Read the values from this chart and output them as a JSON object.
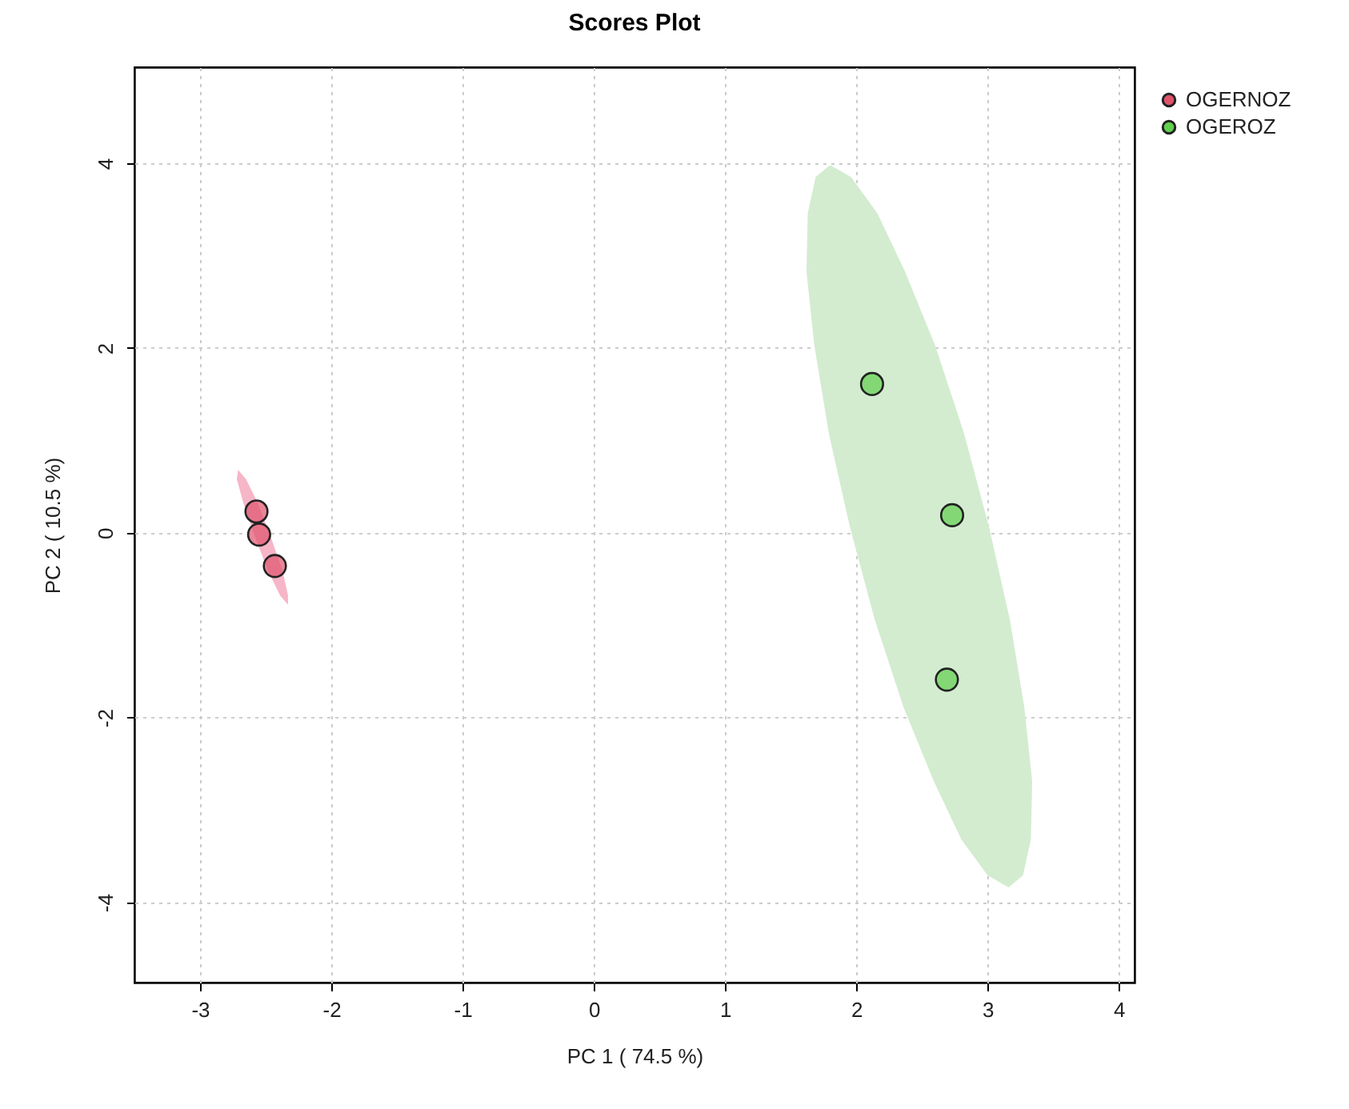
{
  "chart_data": {
    "type": "scatter",
    "title": "Scores Plot",
    "xlabel": "PC 1 ( 74.5 %)",
    "ylabel": "PC 2 ( 10.5 %)",
    "xlim": [
      -3.5,
      4.12
    ],
    "ylim": [
      -4.87,
      5.04
    ],
    "xticks": [
      -3,
      -2,
      -1,
      0,
      1,
      2,
      3,
      4
    ],
    "yticks": [
      -4,
      -2,
      0,
      2,
      4
    ],
    "grid": true,
    "legend": "top right",
    "series": [
      {
        "type": "area",
        "color": "#f6b6c8",
        "x": [
          -2.71,
          -2.65,
          -2.56,
          -2.46,
          -2.37,
          -2.33,
          -2.33,
          -2.39,
          -2.48,
          -2.58,
          -2.67,
          -2.72,
          -2.71
        ],
        "values": [
          0.68,
          0.58,
          0.32,
          -0.05,
          -0.42,
          -0.68,
          -0.78,
          -0.68,
          -0.42,
          -0.05,
          0.32,
          0.58,
          0.68
        ]
      },
      {
        "type": "area",
        "color": "#d3ecd0",
        "x": [
          1.8,
          1.96,
          2.16,
          2.37,
          2.6,
          2.82,
          3.01,
          3.17,
          3.28,
          3.34,
          3.33,
          3.27,
          3.16,
          3.0,
          2.8,
          2.59,
          2.36,
          2.14,
          1.95,
          1.79,
          1.68,
          1.62,
          1.63,
          1.69,
          1.8
        ],
        "values": [
          3.98,
          3.85,
          3.46,
          2.83,
          2.03,
          1.08,
          0.07,
          -0.94,
          -1.89,
          -2.69,
          -3.32,
          -3.71,
          -3.84,
          -3.71,
          -3.32,
          -2.69,
          -1.89,
          -0.94,
          0.07,
          1.08,
          2.03,
          2.83,
          3.46,
          3.85,
          3.98
        ]
      },
      {
        "name": "OGERNOZ",
        "color": "#df536b",
        "marker": "circle",
        "x": [
          -2.57,
          -2.55,
          -2.43
        ],
        "values": [
          0.23,
          -0.02,
          -0.36
        ]
      },
      {
        "name": "OGEROZ",
        "color": "#61d04f",
        "marker": "circle",
        "x": [
          2.12,
          2.73,
          2.69
        ],
        "values": [
          1.61,
          0.19,
          -1.59
        ]
      }
    ]
  }
}
